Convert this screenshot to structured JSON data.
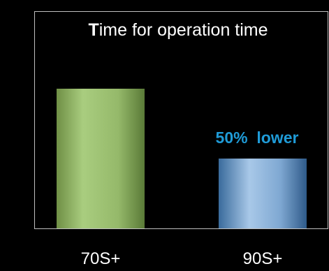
{
  "chart_data": {
    "type": "bar",
    "title_initial": "T",
    "title_rest": "ime for operation time",
    "categories": [
      "70S+",
      "90S+"
    ],
    "values": [
      100,
      50
    ],
    "annotation": "50%  lower",
    "ylim": [
      0,
      100
    ],
    "grid": false,
    "colors": {
      "background": "#000000",
      "frame": "#bfbfbf",
      "title": "#ffffff",
      "category_label": "#ffffff",
      "annotation": "#1f9bd7",
      "bar_70s_light": "#a9cd7f",
      "bar_70s_dark": "#5a7a37",
      "bar_90s_light": "#a8c8e8",
      "bar_90s_dark": "#2f5b8a"
    }
  }
}
